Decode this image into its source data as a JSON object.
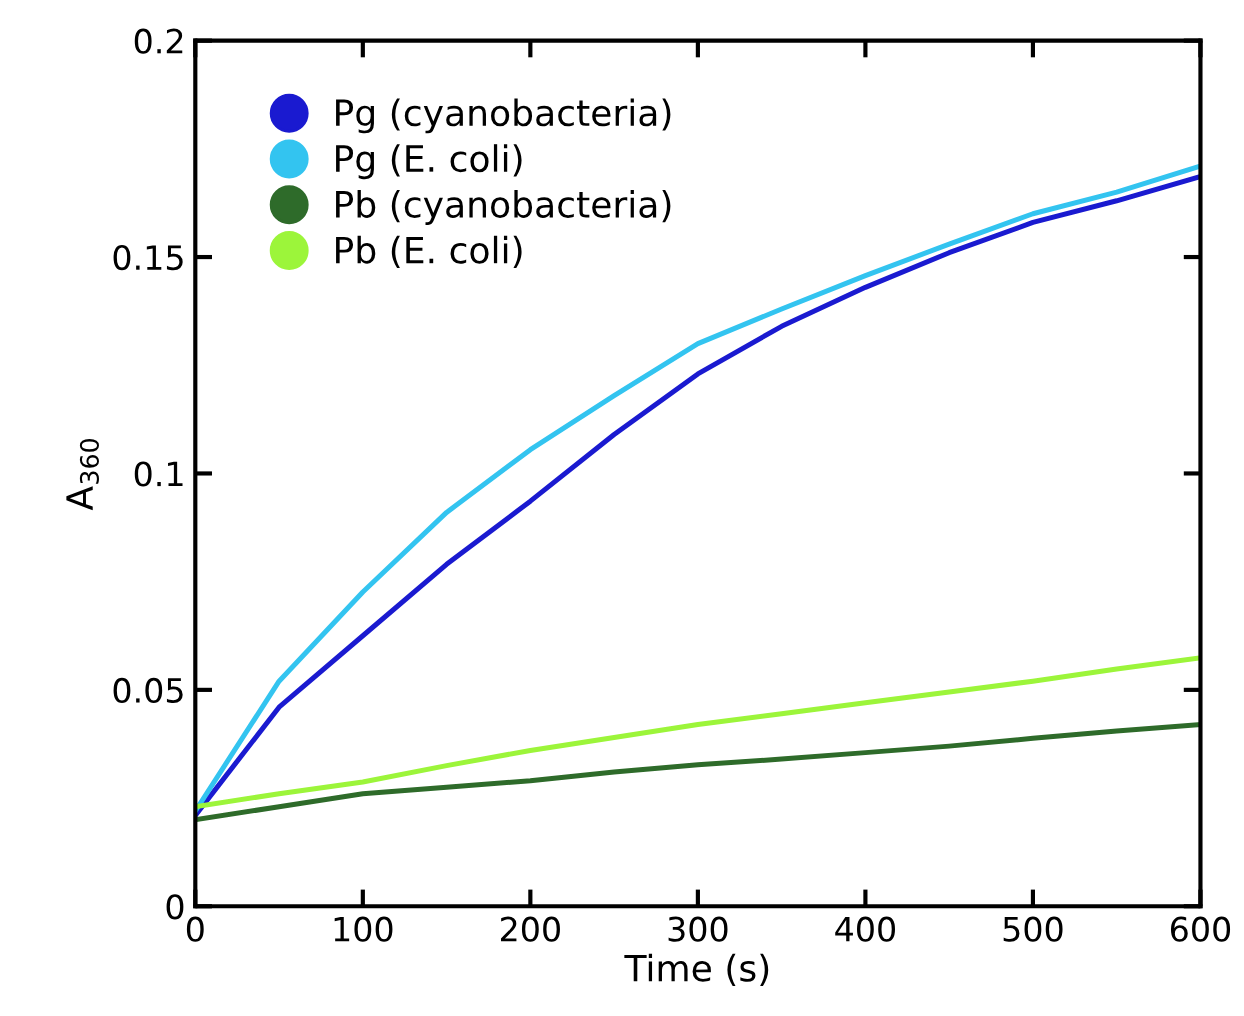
{
  "chart_data": {
    "type": "line",
    "xlabel": "Time (s)",
    "ylabel": "A$_{360}$",
    "x": [
      0,
      50,
      100,
      150,
      200,
      250,
      300,
      350,
      400,
      450,
      500,
      550,
      600
    ],
    "series": [
      {
        "name": "Pg (cyanobacteria)",
        "color": "#1a1ad0",
        "values": [
          0.021,
          0.046,
          0.0625,
          0.079,
          0.0936,
          0.109,
          0.123,
          0.134,
          0.143,
          0.151,
          0.158,
          0.163,
          0.1686
        ]
      },
      {
        "name": "Pg (E. coli)",
        "color": "#33c4f0",
        "values": [
          0.022,
          0.052,
          0.0726,
          0.091,
          0.1055,
          0.118,
          0.13,
          0.138,
          0.1457,
          0.153,
          0.16,
          0.165,
          0.171
        ]
      },
      {
        "name": "Pb (cyanobacteria)",
        "color": "#2e6b2a",
        "values": [
          0.02,
          0.023,
          0.026,
          0.0275,
          0.029,
          0.031,
          0.0327,
          0.034,
          0.0355,
          0.037,
          0.0388,
          0.0405,
          0.042
        ]
      },
      {
        "name": "Pb (E. coli)",
        "color": "#9cf53a",
        "values": [
          0.023,
          0.026,
          0.0287,
          0.0325,
          0.036,
          0.039,
          0.042,
          0.0445,
          0.047,
          0.0495,
          0.052,
          0.0548,
          0.0574
        ]
      }
    ],
    "xlim": [
      0,
      600
    ],
    "xticks": [
      0,
      100,
      200,
      300,
      400,
      500,
      600
    ],
    "ylim": [
      0,
      0.2
    ],
    "yticks": [
      0,
      0.05,
      0.1,
      0.15,
      0.2
    ],
    "legend": "top left",
    "grid": false,
    "marker": "none",
    "line_style": "solid"
  }
}
